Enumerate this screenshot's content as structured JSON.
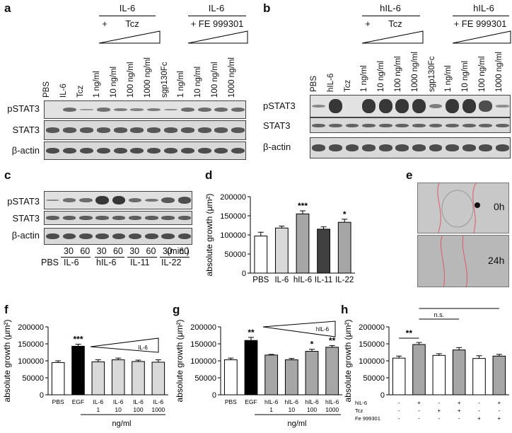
{
  "panels": {
    "a": {
      "label": "a",
      "group1": {
        "title": "IL-6",
        "plus": "+",
        "agent": "Tcz"
      },
      "group2": {
        "title": "IL-6",
        "plus_agent": "+ FE 999301"
      },
      "lanes": [
        "PBS",
        "IL-6",
        "Tcz",
        "1 ng/ml",
        "10 ng/ml",
        "100 ng/ml",
        "1000 ng/ml",
        "sgp130Fc",
        "1 ng/ml",
        "10 ng/ml",
        "100 ng/ml",
        "1000 ng/ml"
      ],
      "rows": [
        "pSTAT3",
        "STAT3",
        "β-actin"
      ]
    },
    "b": {
      "label": "b",
      "group1": {
        "title": "hIL-6",
        "plus": "+",
        "agent": "Tcz"
      },
      "group2": {
        "title": "hIL-6",
        "plus_agent": "+ FE 999301"
      },
      "lanes": [
        "PBS",
        "hIL-6",
        "Tcz",
        "1 ng/ml",
        "10 ng/ml",
        "100 ng/ml",
        "1000 ng/ml",
        "sgp130Fc",
        "1 ng/ml",
        "10 ng/ml",
        "100 ng/ml",
        "1000 ng/ml"
      ],
      "rows": [
        "pSTAT3",
        "STAT3",
        "β-actin"
      ]
    },
    "c": {
      "label": "c",
      "rows": [
        "pSTAT3",
        "STAT3",
        "β-actin"
      ],
      "times": [
        "30",
        "60",
        "30",
        "60",
        "30",
        "60",
        "30",
        "60"
      ],
      "unit": "(min.)",
      "groups": [
        "PBS",
        "IL-6",
        "hIL-6",
        "IL-11",
        "IL-22"
      ]
    },
    "e": {
      "label": "e",
      "top": "0h",
      "bottom": "24h"
    }
  },
  "colors": {
    "white_bar": "#ffffff",
    "light_bar": "#d9d9d9",
    "mid_bar": "#a6a6a6",
    "dark_bar": "#404040",
    "black_bar": "#000000",
    "gel_bg": "#d4d4d4",
    "scratch_line": "#e05a6a"
  },
  "chart_data": [
    {
      "panel": "d",
      "type": "bar",
      "categories": [
        "PBS",
        "IL-6",
        "hIL-6",
        "IL-11",
        "IL-22"
      ],
      "values": [
        97000,
        118000,
        155000,
        115000,
        133000
      ],
      "errors": [
        10000,
        5000,
        8000,
        6000,
        8000
      ],
      "significance": [
        "",
        "",
        "***",
        "",
        "*"
      ],
      "colors": [
        "#ffffff",
        "#d9d9d9",
        "#a6a6a6",
        "#404040",
        "#a6a6a6"
      ],
      "ylabel": "absolute growth (μm²)",
      "ylim": [
        0,
        200000
      ],
      "yticks": [
        "0",
        "50000",
        "100000",
        "150000",
        "200000"
      ]
    },
    {
      "panel": "f",
      "type": "bar",
      "categories": [
        "PBS",
        "EGF",
        "IL-6\n1",
        "IL-6\n10",
        "IL-6\n100",
        "IL-6\n1000"
      ],
      "values": [
        95000,
        143000,
        97000,
        103000,
        98000,
        96000
      ],
      "errors": [
        5000,
        6000,
        6000,
        5000,
        4000,
        7000
      ],
      "significance": [
        "",
        "***",
        "",
        "",
        "",
        ""
      ],
      "colors": [
        "#ffffff",
        "#000000",
        "#d9d9d9",
        "#d9d9d9",
        "#d9d9d9",
        "#d9d9d9"
      ],
      "ylabel": "absolute growth (μm²)",
      "ylim": [
        0,
        200000
      ],
      "yticks": [
        "0",
        "50000",
        "100000",
        "150000",
        "200000"
      ],
      "xunit": "ng/ml",
      "wedge_label": "IL-6"
    },
    {
      "panel": "g",
      "type": "bar",
      "categories": [
        "PBS",
        "EGF",
        "hIL-6\n1",
        "hIL-6\n10",
        "hIL-6\n100",
        "hIL-6\n1000"
      ],
      "values": [
        103000,
        160000,
        117000,
        103000,
        128000,
        140000
      ],
      "errors": [
        5000,
        9000,
        2000,
        4000,
        6000,
        5000
      ],
      "significance": [
        "",
        "**",
        "",
        "",
        "*",
        "**"
      ],
      "colors": [
        "#ffffff",
        "#000000",
        "#a6a6a6",
        "#a6a6a6",
        "#a6a6a6",
        "#a6a6a6"
      ],
      "ylabel": "absolute growth (μm²)",
      "ylim": [
        0,
        200000
      ],
      "yticks": [
        "0",
        "50000",
        "100000",
        "150000",
        "200000"
      ],
      "xunit": "ng/ml",
      "wedge_label": "hIL-6"
    },
    {
      "panel": "h",
      "type": "bar",
      "categories": [
        "1",
        "2",
        "3",
        "4",
        "5",
        "6"
      ],
      "values": [
        108000,
        148000,
        116000,
        132000,
        107000,
        114000
      ],
      "errors": [
        6000,
        6000,
        5000,
        7000,
        8000,
        5000
      ],
      "colors": [
        "#ffffff",
        "#a6a6a6",
        "#ffffff",
        "#a6a6a6",
        "#ffffff",
        "#a6a6a6"
      ],
      "ylabel": "absolute growth (μm²)",
      "ylim": [
        0,
        200000
      ],
      "yticks": [
        "0",
        "50000",
        "100000",
        "150000",
        "200000"
      ],
      "conditions": {
        "hIL-6": [
          "-",
          "+",
          "-",
          "+",
          "-",
          "+"
        ],
        "Tcz": [
          "-",
          "-",
          "+",
          "+",
          "-",
          "-"
        ],
        "Fe 999301": [
          "-",
          "-",
          "-",
          "-",
          "+",
          "+"
        ]
      },
      "comparisons": [
        {
          "from": 0,
          "to": 1,
          "label": "**"
        },
        {
          "from": 1,
          "to": 3,
          "label": "n.s."
        },
        {
          "from": 1,
          "to": 5,
          "label": "**"
        }
      ]
    }
  ]
}
